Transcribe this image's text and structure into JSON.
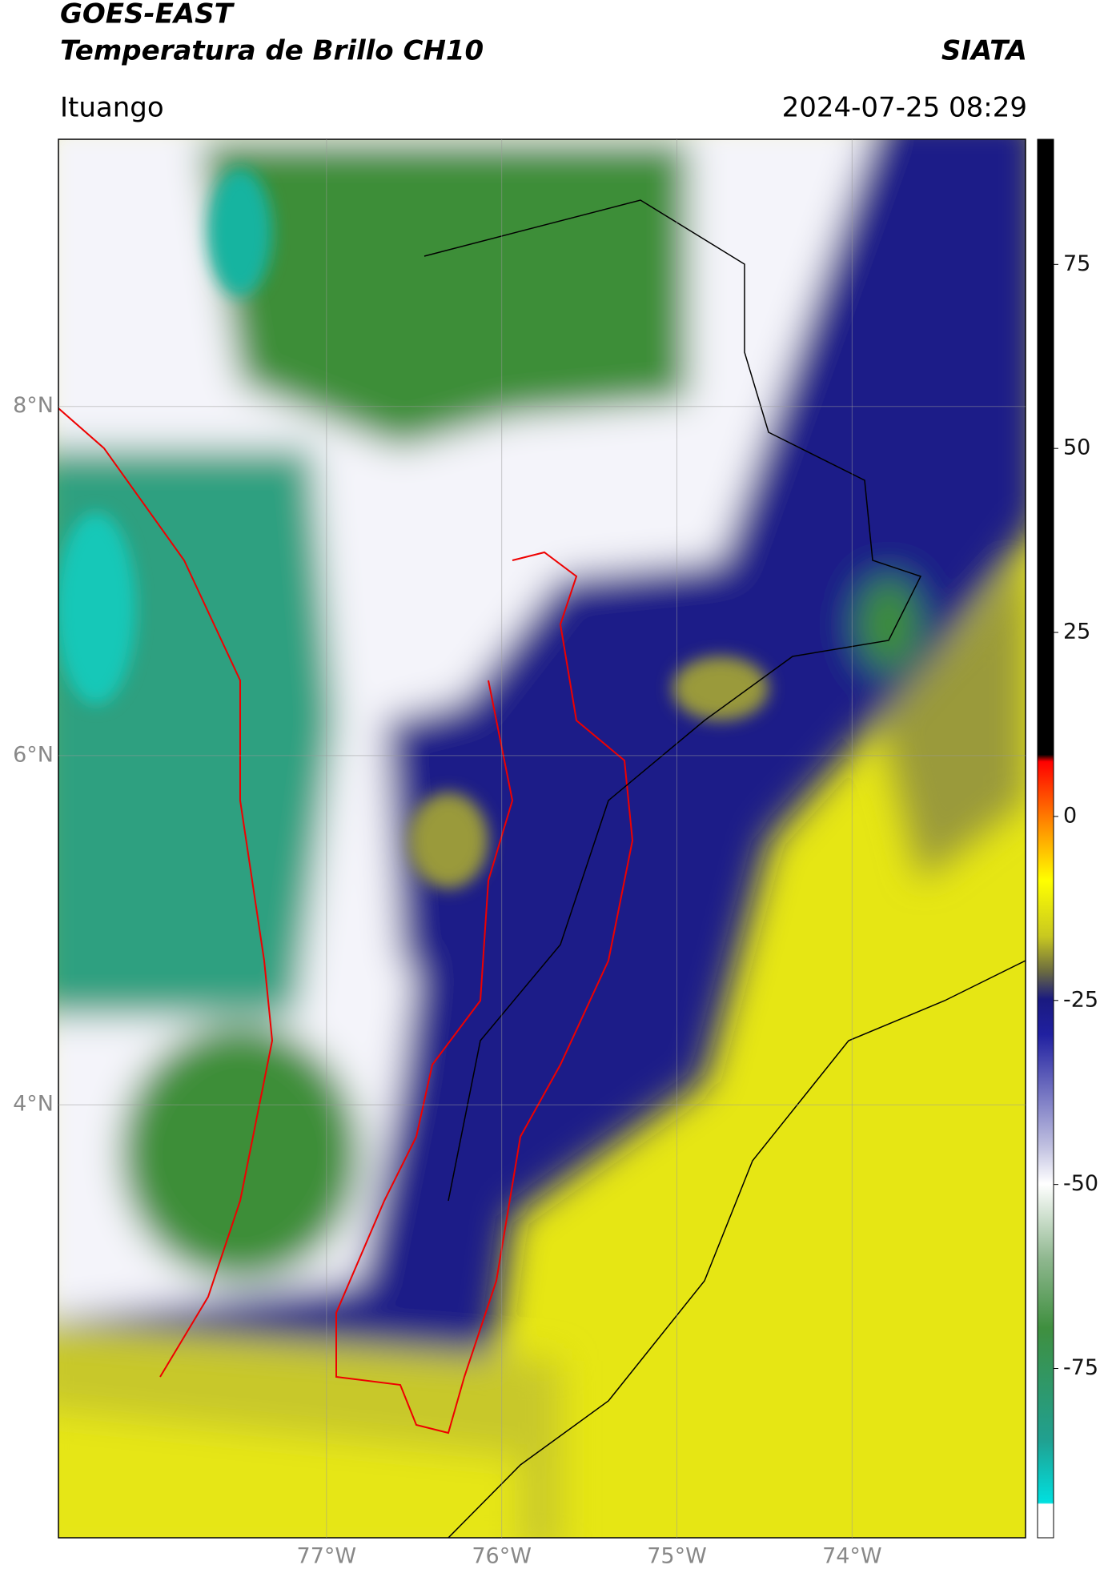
{
  "header": {
    "title": "GOES-EAST",
    "subtitle": "Temperatura de Brillo CH10",
    "brand": "SIATA",
    "location": "Ituango",
    "datetime": "2024-07-25 08:29"
  },
  "map": {
    "xlim": [
      -78.53,
      -73.01
    ],
    "ylim": [
      1.52,
      9.53
    ],
    "xticks": [
      {
        "value": -77,
        "label": "77°W"
      },
      {
        "value": -76,
        "label": "76°W"
      },
      {
        "value": -75,
        "label": "75°W"
      },
      {
        "value": -74,
        "label": "74°W"
      }
    ],
    "yticks": [
      {
        "value": 8,
        "label": "8°N"
      },
      {
        "value": 6,
        "label": "6°N"
      },
      {
        "value": 4,
        "label": "4°N"
      }
    ],
    "grid": true
  },
  "colorbar": {
    "ylim": [
      -98,
      92
    ],
    "yticks": [
      75,
      50,
      25,
      0,
      -25,
      -50,
      -75
    ]
  }
}
